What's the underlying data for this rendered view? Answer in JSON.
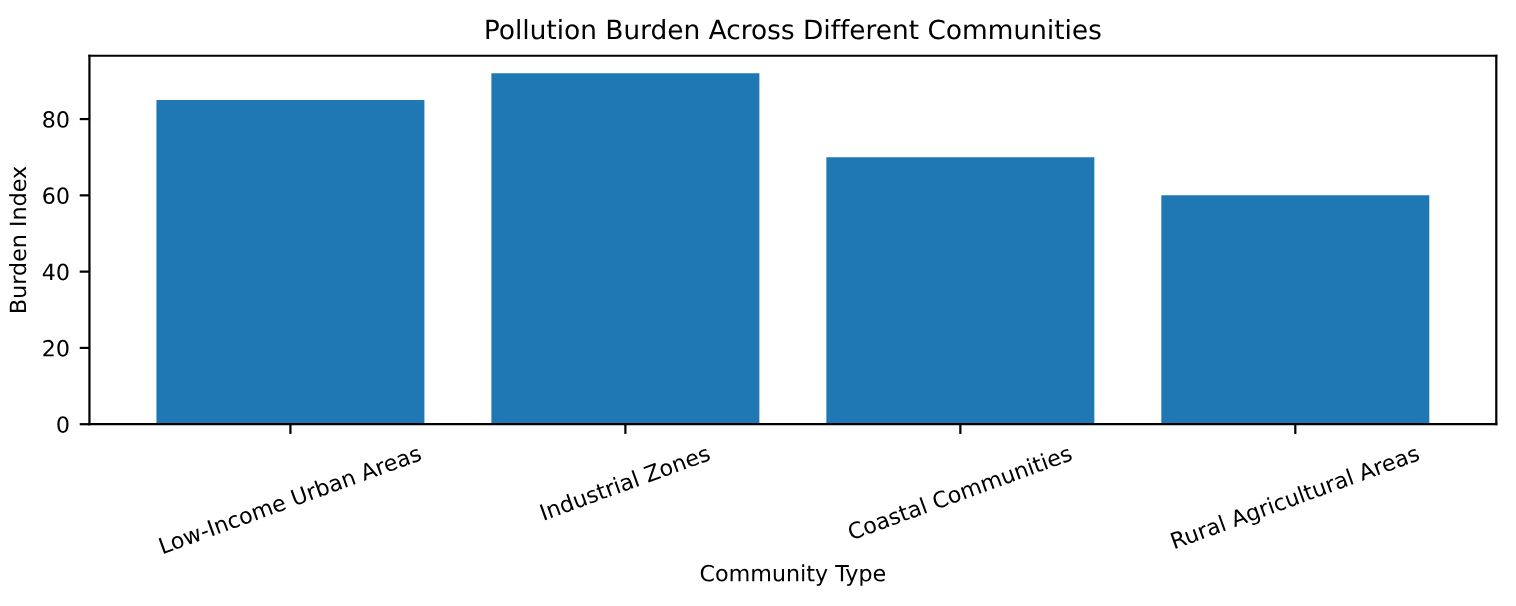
{
  "chart_data": {
    "type": "bar",
    "title": "Pollution Burden Across Different Communities",
    "xlabel": "Community Type",
    "ylabel": "Burden Index",
    "categories": [
      "Low-Income Urban Areas",
      "Industrial Zones",
      "Coastal Communities",
      "Rural Agricultural Areas"
    ],
    "values": [
      85,
      92,
      70,
      60
    ],
    "color": "#1f77b4",
    "ylim": [
      0,
      96.6
    ],
    "yticks": [
      0,
      20,
      40,
      60,
      80
    ],
    "grid": false
  }
}
